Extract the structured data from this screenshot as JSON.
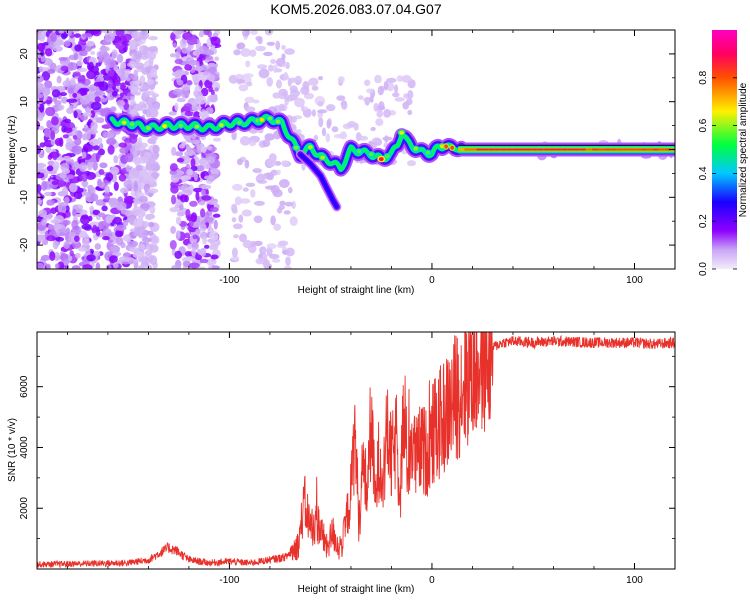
{
  "title": "KOM5.2026.083.07.04.G07",
  "chart_data": [
    {
      "type": "heatmap",
      "name": "spectrogram",
      "xlabel": "Height of straight line (km)",
      "ylabel": "Frequency (Hz)",
      "xlim": [
        -195,
        120
      ],
      "ylim": [
        -25,
        25
      ],
      "xticks": [
        -100,
        0,
        100
      ],
      "xtick_labels": [
        "-100",
        "0",
        "100"
      ],
      "yticks": [
        -20,
        -10,
        0,
        10,
        20
      ],
      "ytick_labels": [
        "-20",
        "-10",
        "0",
        "10",
        "20"
      ],
      "ridge": {
        "x": [
          -158,
          -150,
          -140,
          -130,
          -120,
          -110,
          -100,
          -90,
          -80,
          -74,
          -70,
          -65,
          -60,
          -55,
          -50,
          -45,
          -40,
          -35,
          -30,
          -25,
          -20,
          -17,
          -15,
          -12,
          -9,
          -6,
          -3,
          0,
          3,
          6,
          9,
          12,
          15,
          20,
          40,
          60,
          80,
          100,
          120
        ],
        "y": [
          6,
          5.5,
          4.5,
          5,
          5,
          4.5,
          5.5,
          5.8,
          6.5,
          5.5,
          2.5,
          -1,
          0.5,
          -1.5,
          -2.5,
          -4,
          0,
          -0.5,
          -1,
          -2,
          -1,
          1,
          3.5,
          1.5,
          0.5,
          -0.5,
          -0.5,
          -1,
          0.5,
          0.8,
          0.3,
          0.5,
          0,
          0,
          0,
          0,
          0,
          0,
          0
        ]
      },
      "branch": {
        "x": [
          -65,
          -60,
          -55,
          -52,
          -49,
          -47
        ],
        "y": [
          -1,
          -3,
          -5.5,
          -8,
          -10.5,
          -12
        ]
      }
    },
    {
      "type": "line",
      "name": "snr",
      "xlabel": "Height of straight line (km)",
      "ylabel": "SNR (10 * v/v)",
      "xlim": [
        -195,
        120
      ],
      "ylim": [
        0,
        7800
      ],
      "xticks": [
        -100,
        0,
        100
      ],
      "xtick_labels": [
        "-100",
        "0",
        "100"
      ],
      "yticks": [
        2000,
        4000,
        6000
      ],
      "ytick_labels": [
        "2000",
        "4000",
        "6000"
      ],
      "color": "#e8312a",
      "x": [
        -195,
        -170,
        -150,
        -140,
        -135,
        -130,
        -126,
        -120,
        -110,
        -100,
        -90,
        -80,
        -72,
        -66,
        -63,
        -60,
        -56,
        -52,
        -49,
        -46,
        -44,
        -40,
        -38,
        -36,
        -34,
        -32,
        -30,
        -28,
        -26,
        -24,
        -22,
        -20,
        -18,
        -16,
        -14,
        -12,
        -10,
        -8,
        -5,
        -3,
        0,
        2,
        5,
        8,
        10,
        13,
        16,
        20,
        25,
        30,
        35,
        40,
        50,
        60,
        80,
        100,
        110,
        120
      ],
      "y": [
        150,
        180,
        200,
        300,
        500,
        700,
        600,
        300,
        200,
        250,
        200,
        300,
        400,
        800,
        2200,
        1400,
        1500,
        700,
        1200,
        700,
        900,
        2500,
        4500,
        1500,
        3500,
        2500,
        5000,
        2200,
        3800,
        3000,
        4500,
        3500,
        4200,
        3000,
        4800,
        3500,
        4300,
        3600,
        4000,
        3800,
        4400,
        4600,
        4900,
        5200,
        5500,
        5800,
        6200,
        6600,
        7000,
        7300,
        7450,
        7500,
        7450,
        7500,
        7450,
        7450,
        7400,
        7450
      ]
    }
  ],
  "colorbar": {
    "label": "Normalized spectral amplitude",
    "ticks": [
      "0.0",
      "0.2",
      "0.4",
      "0.6",
      "0.8"
    ],
    "tick_values": [
      0.0,
      0.2,
      0.4,
      0.6,
      0.8
    ],
    "range": [
      0.0,
      1.0
    ],
    "stops": [
      "#f3ecfb",
      "#8f00ff",
      "#1a00ff",
      "#00c8ff",
      "#00ff40",
      "#fff000",
      "#ff5000",
      "#ff0060",
      "#ff00c0"
    ]
  }
}
